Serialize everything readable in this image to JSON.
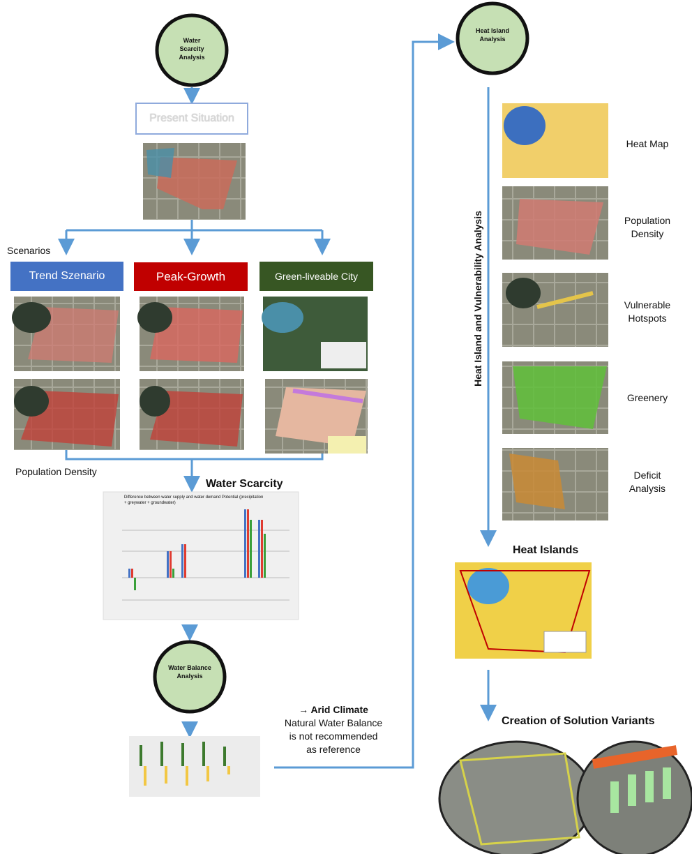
{
  "water_scarcity_analysis": "Water Scarcity Analysis",
  "present_situation": "Present Situation",
  "scenarios_label": "Scenarios",
  "scenarios": [
    "Trend Szenario",
    "Peak-Growth",
    "Green-liveable City"
  ],
  "population_density_left": "Population Density",
  "water_scarcity_title": "Water Scarcity",
  "water_scarcity_chart_title": "Difference between water supply and water demand Potential (precipitation + greywater + groundwater)",
  "water_balance_analysis": "Water Balance Analysis",
  "arid_note": {
    "heading": "→ Arid Climate",
    "lines": [
      "Natural Water Balance",
      "is not recommended",
      "as reference"
    ]
  },
  "heat_island_analysis": "Heat Island Analysis",
  "vertical_label": "Heat Island and Vulnerability Analysis",
  "heat_steps": [
    "Heat Map",
    "Population Density",
    "Vulnerable Hotspots",
    "Greenery",
    "Deficit Analysis"
  ],
  "heat_islands": "Heat Islands",
  "solution_variants": "Creation of Solution Variants"
}
